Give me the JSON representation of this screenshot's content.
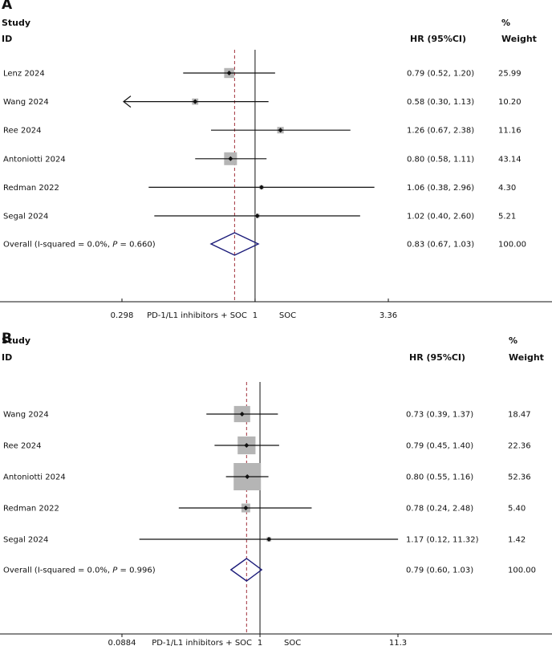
{
  "chart_data": [
    {
      "type": "forest",
      "panel_label": "A",
      "header": {
        "study": "Study",
        "id": "ID",
        "hr": "HR (95%CI)",
        "pct": "%",
        "weight": "Weight"
      },
      "studies": [
        {
          "label": "Lenz 2024",
          "hr": 0.79,
          "lower": 0.52,
          "upper": 1.2,
          "ci_text": "0.79 (0.52, 1.20)",
          "weight": 25.99,
          "weight_text": "25.99"
        },
        {
          "label": "Wang 2024",
          "hr": 0.58,
          "lower": 0.3,
          "upper": 1.13,
          "ci_text": "0.58 (0.30, 1.13)",
          "weight": 10.2,
          "weight_text": "10.20",
          "arrow_left": true
        },
        {
          "label": "Ree 2024",
          "hr": 1.26,
          "lower": 0.67,
          "upper": 2.38,
          "ci_text": "1.26 (0.67, 2.38)",
          "weight": 11.16,
          "weight_text": "11.16"
        },
        {
          "label": "Antoniotti 2024",
          "hr": 0.8,
          "lower": 0.58,
          "upper": 1.11,
          "ci_text": "0.80 (0.58, 1.11)",
          "weight": 43.14,
          "weight_text": "43.14"
        },
        {
          "label": "Redman 2022",
          "hr": 1.06,
          "lower": 0.38,
          "upper": 2.96,
          "ci_text": "1.06 (0.38, 2.96)",
          "weight": 4.3,
          "weight_text": "4.30"
        },
        {
          "label": "Segal 2024",
          "hr": 1.02,
          "lower": 0.4,
          "upper": 2.6,
          "ci_text": "1.02 (0.40, 2.60)",
          "weight": 5.21,
          "weight_text": "5.21"
        }
      ],
      "overall": {
        "label_prefix": "Overall  (I-squared = 0.0%, ",
        "p_symbol": "P",
        "label_suffix": " = 0.660)",
        "hr": 0.83,
        "lower": 0.67,
        "upper": 1.03,
        "ci_text": "0.83 (0.67, 1.03)",
        "weight_text": "100.00"
      },
      "xscale": "log",
      "xlim": [
        0.298,
        3.36
      ],
      "axis_labels": {
        "min": "0.298",
        "max": "3.36",
        "null": "1"
      },
      "favors_left": "PD-1/L1 inhibitors + SOC",
      "favors_right": "SOC",
      "colors": {
        "box": "#b5b5b5",
        "line": "#111111",
        "diamond": "#1c1c7a",
        "dashed": "#a0303a"
      }
    },
    {
      "type": "forest",
      "panel_label": "B",
      "header": {
        "study": "Study",
        "id": "ID",
        "hr": "HR (95%CI)",
        "pct": "%",
        "weight": "Weight"
      },
      "studies": [
        {
          "label": "Wang 2024",
          "hr": 0.73,
          "lower": 0.39,
          "upper": 1.37,
          "ci_text": "0.73 (0.39, 1.37)",
          "weight": 18.47,
          "weight_text": "18.47"
        },
        {
          "label": "Ree 2024",
          "hr": 0.79,
          "lower": 0.45,
          "upper": 1.4,
          "ci_text": "0.79 (0.45, 1.40)",
          "weight": 22.36,
          "weight_text": "22.36"
        },
        {
          "label": "Antoniotti 2024",
          "hr": 0.8,
          "lower": 0.55,
          "upper": 1.16,
          "ci_text": "0.80 (0.55, 1.16)",
          "weight": 52.36,
          "weight_text": "52.36"
        },
        {
          "label": "Redman 2022",
          "hr": 0.78,
          "lower": 0.24,
          "upper": 2.48,
          "ci_text": "0.78 (0.24, 2.48)",
          "weight": 5.4,
          "weight_text": "5.40"
        },
        {
          "label": "Segal 2024",
          "hr": 1.17,
          "lower": 0.12,
          "upper": 11.32,
          "ci_text": "1.17 (0.12, 11.32)",
          "weight": 1.42,
          "weight_text": "1.42"
        }
      ],
      "overall": {
        "label_prefix": "Overall  (I-squared = 0.0%, ",
        "p_symbol": "P",
        "label_suffix": " = 0.996)",
        "hr": 0.79,
        "lower": 0.6,
        "upper": 1.03,
        "ci_text": "0.79 (0.60, 1.03)",
        "weight_text": "100.00"
      },
      "xscale": "log",
      "xlim": [
        0.0884,
        11.3
      ],
      "axis_labels": {
        "min": "0.0884",
        "max": "11.3",
        "null": "1"
      },
      "favors_left": "PD-1/L1 inhibitors + SOC",
      "favors_right": "SOC",
      "colors": {
        "box": "#b5b5b5",
        "line": "#111111",
        "diamond": "#1c1c7a",
        "dashed": "#a0303a"
      }
    }
  ]
}
